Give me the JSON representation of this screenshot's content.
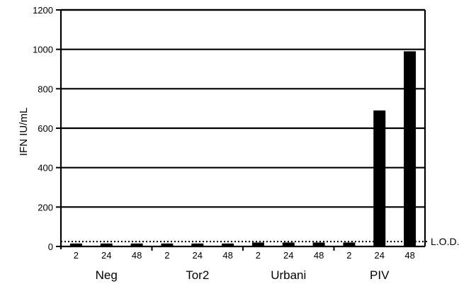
{
  "colors": {
    "bar": "#000000",
    "axis": "#000000",
    "grid": "#000000",
    "background": "#ffffff"
  },
  "chart_data": {
    "type": "bar",
    "title": "",
    "xlabel": "",
    "ylabel": "IFN IU/mL",
    "ylim": [
      0,
      1200
    ],
    "yticks": [
      "0",
      "200",
      "400",
      "600",
      "800",
      "1000",
      "1200"
    ],
    "grid": true,
    "groups": [
      "Neg",
      "Tor2",
      "Urbani",
      "PIV"
    ],
    "timepoints": [
      "2",
      "24",
      "48"
    ],
    "categories": [
      "2",
      "24",
      "48",
      "2",
      "24",
      "48",
      "2",
      "24",
      "48",
      "2",
      "24",
      "48"
    ],
    "values": [
      15,
      15,
      15,
      15,
      15,
      15,
      20,
      20,
      20,
      20,
      690,
      990
    ],
    "threshold": {
      "label": "L.O.D.",
      "value": 25
    }
  }
}
